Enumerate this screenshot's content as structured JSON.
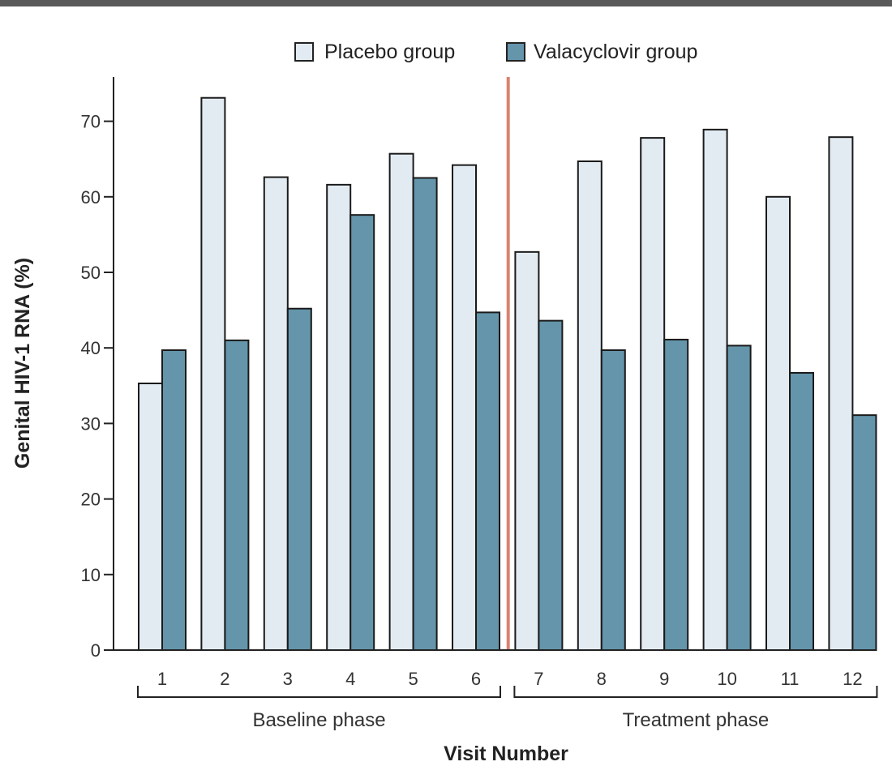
{
  "chart_data": {
    "type": "bar",
    "xlabel": "Visit Number",
    "ylabel": "Genital HIV-1 RNA (%)",
    "ylim": [
      0,
      75
    ],
    "yticks": [
      0,
      10,
      20,
      30,
      40,
      50,
      60,
      70
    ],
    "categories": [
      "1",
      "2",
      "3",
      "4",
      "5",
      "6",
      "7",
      "8",
      "9",
      "10",
      "11",
      "12"
    ],
    "series": [
      {
        "name": "Placebo group",
        "color": "#e3ebf2",
        "values": [
          35.3,
          73.1,
          62.6,
          61.6,
          65.7,
          64.2,
          52.7,
          64.7,
          67.8,
          68.9,
          60.0,
          67.9
        ]
      },
      {
        "name": "Valacyclovir group",
        "color": "#6495aa",
        "values": [
          39.7,
          41.0,
          45.2,
          57.6,
          62.5,
          44.7,
          43.6,
          39.7,
          41.1,
          40.3,
          36.7,
          31.1
        ]
      }
    ],
    "phases": [
      {
        "label": "Baseline phase",
        "from": 1,
        "to": 6
      },
      {
        "label": "Treatment phase",
        "from": 7,
        "to": 12
      }
    ],
    "divider_color": "#d9826e",
    "legend": "top-center",
    "grid": false
  }
}
